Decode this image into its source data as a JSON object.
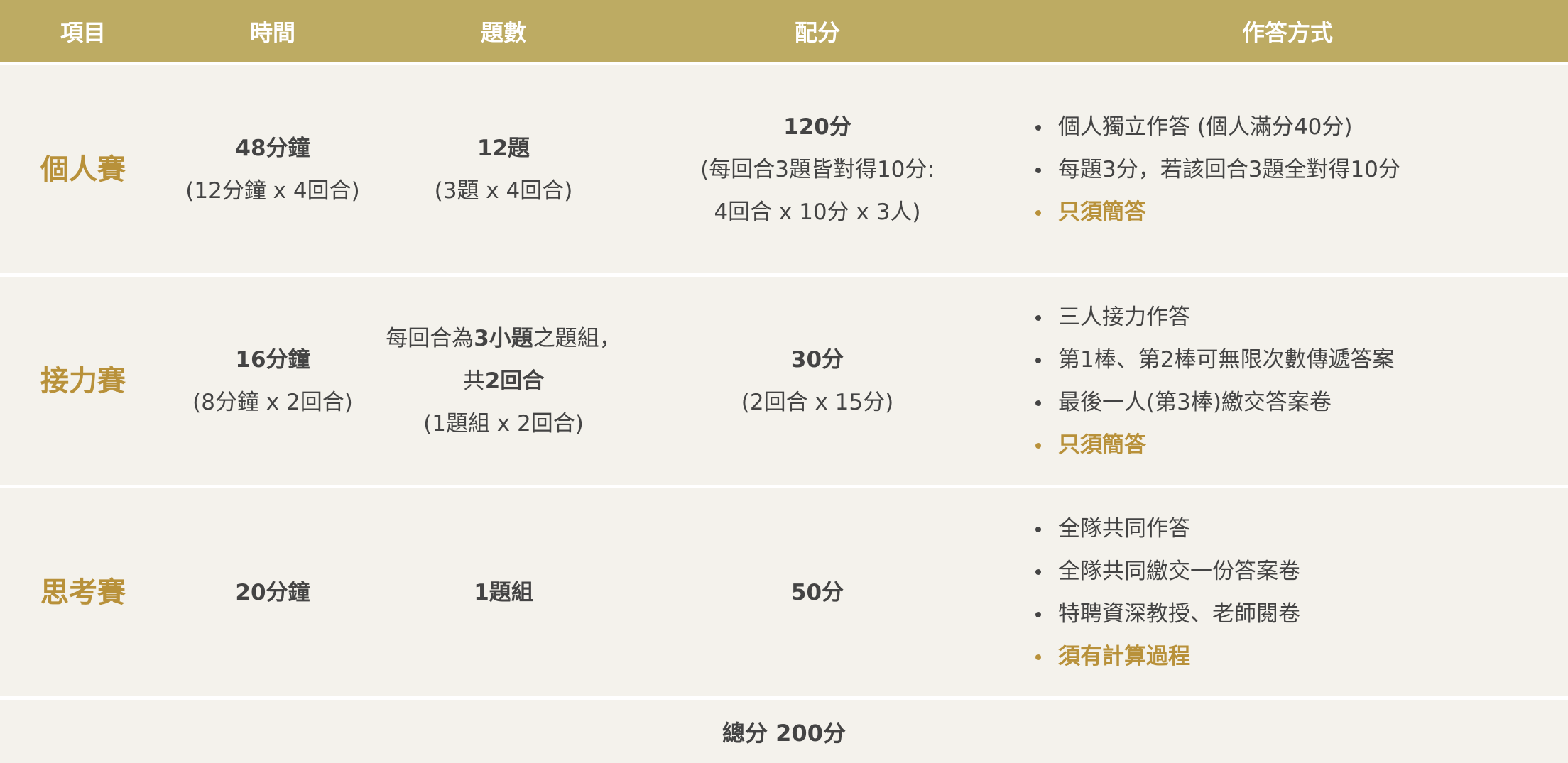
{
  "header": [
    "項目",
    "時間",
    "題數",
    "配分",
    "作答方式"
  ],
  "rows": [
    {
      "name": "個人賽",
      "time": [
        "48分鐘",
        "(12分鐘 x 4回合)"
      ],
      "count": {
        "line1": "12題",
        "line2": "(3題 x 4回合)"
      },
      "score": [
        "120分",
        "(每回合3題皆對得10分:",
        "4回合 x 10分 x 3人)"
      ],
      "method": [
        "個人獨立作答 (個人滿分40分)",
        "每題3分，若該回合3題全對得10分"
      ],
      "highlight": "只須簡答"
    },
    {
      "name": "接力賽",
      "time": [
        "16分鐘",
        "(8分鐘 x 2回合)"
      ],
      "count": {
        "a1": "每回合為",
        "a2": "3小題",
        "a3": "之題組，",
        "b1": "共",
        "b2": "2回合",
        "c": "(1題組 x 2回合)"
      },
      "score": [
        "30分",
        "(2回合 x 15分)"
      ],
      "method": [
        "三人接力作答",
        "第1棒、第2棒可無限次數傳遞答案",
        "最後一人(第3棒)繳交答案卷"
      ],
      "highlight": "只須簡答"
    },
    {
      "name": "思考賽",
      "time": [
        "20分鐘"
      ],
      "count": {
        "line1": "1題組"
      },
      "score": [
        "50分"
      ],
      "method": [
        "全隊共同作答",
        "全隊共同繳交一份答案卷",
        "特聘資深教授、老師閱卷"
      ],
      "highlight": "須有計算過程"
    }
  ],
  "total": "總分 200分",
  "colors": {
    "header_bg": "#bdab63",
    "accent": "#b8913a",
    "row_bg": "#f4f2ec"
  }
}
